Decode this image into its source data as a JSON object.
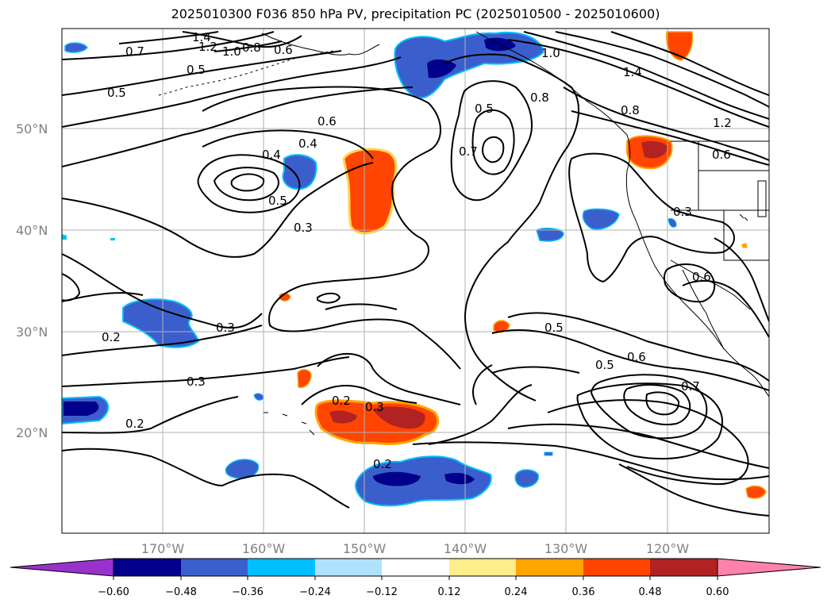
{
  "title": "2025010300 F036 850 hPa PV, precipitation PC (2025010500 - 2025010600)",
  "map": {
    "lat_labels": [
      "50°N",
      "40°N",
      "30°N",
      "20°N"
    ],
    "lon_labels": [
      "170°W",
      "160°W",
      "150°W",
      "140°W",
      "130°W",
      "120°W"
    ],
    "contour_labels": [
      "1.4",
      "1.2",
      "1.0",
      "0.8",
      "0.7",
      "0.6",
      "0.5",
      "0.5",
      "0.6",
      "0.4",
      "0.4",
      "0.5",
      "0.3",
      "0.7",
      "0.5",
      "1.0",
      "0.8",
      "0.8",
      "1.2",
      "1.4",
      "0.6",
      "0.3",
      "0.6",
      "0.2",
      "0.3",
      "0.3",
      "0.5",
      "0.5",
      "0.6",
      "0.7",
      "0.2",
      "0.2",
      "0.3",
      "0.2"
    ]
  },
  "colorbar": {
    "ticks": [
      "−0.60",
      "−0.48",
      "−0.36",
      "−0.24",
      "−0.12",
      "0.12",
      "0.24",
      "0.36",
      "0.48",
      "0.60"
    ],
    "colors": [
      "#9932CC",
      "#00008B",
      "#3A5FCD",
      "#00BFFF",
      "#B0E2FF",
      "#FFFFFF",
      "#FFEC8B",
      "#FFA500",
      "#FF4500",
      "#B22222",
      "#FF82AB"
    ]
  },
  "shading_colors": {
    "deep_negative": "#00008B",
    "negative": "#3A5FCD",
    "light_negative": "#00BFFF",
    "positive": "#FF4500",
    "strong_positive": "#B22222",
    "light_positive": "#FFA500"
  }
}
